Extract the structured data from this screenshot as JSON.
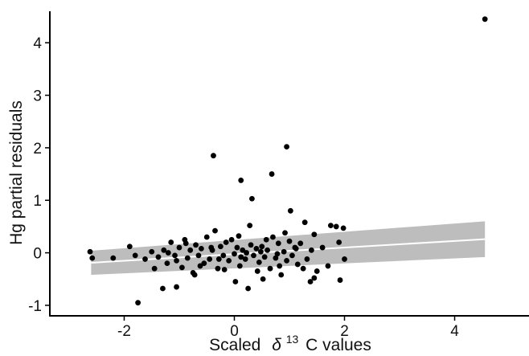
{
  "chart_data": {
    "type": "scatter",
    "xlabel_prefix": "Scaled",
    "xlabel_symbol": "δ",
    "xlabel_superscript": "13",
    "xlabel_suffix": "C values",
    "ylabel": "Hg partial residuals",
    "xlim": [
      -3.35,
      5.35
    ],
    "ylim": [
      -1.2,
      4.6
    ],
    "xticks": [
      -2,
      0,
      2,
      4
    ],
    "yticks": [
      -1,
      0,
      1,
      2,
      3,
      4
    ],
    "xtick_labels": [
      "-2",
      "0",
      "2",
      "4"
    ],
    "ytick_labels": [
      "-1",
      "0",
      "1",
      "2",
      "3",
      "4"
    ],
    "grid": false,
    "colors": {
      "points": "#000000",
      "fit_line": "#ffffff",
      "confidence_band": "#bdbdbd"
    },
    "fit_line": {
      "x": [
        -2.6,
        4.55
      ],
      "y": [
        -0.19,
        0.26
      ]
    },
    "confidence_band": {
      "x": [
        -2.6,
        4.55
      ],
      "lower": [
        -0.42,
        -0.08
      ],
      "upper": [
        0.04,
        0.6
      ]
    },
    "points": [
      {
        "x": 4.55,
        "y": 4.45
      },
      {
        "x": -0.38,
        "y": 1.85
      },
      {
        "x": 0.95,
        "y": 2.02
      },
      {
        "x": 0.12,
        "y": 1.38
      },
      {
        "x": 0.68,
        "y": 1.5
      },
      {
        "x": 0.32,
        "y": 1.03
      },
      {
        "x": 1.02,
        "y": 0.8
      },
      {
        "x": 0.28,
        "y": 0.52
      },
      {
        "x": 1.28,
        "y": 0.58
      },
      {
        "x": 1.75,
        "y": 0.52
      },
      {
        "x": 1.85,
        "y": 0.5
      },
      {
        "x": 1.98,
        "y": 0.47
      },
      {
        "x": -1.75,
        "y": -0.95
      },
      {
        "x": -1.05,
        "y": -0.65
      },
      {
        "x": -1.3,
        "y": -0.68
      },
      {
        "x": 0.25,
        "y": -0.68
      },
      {
        "x": 0.52,
        "y": -0.5
      },
      {
        "x": 1.45,
        "y": -0.48
      },
      {
        "x": 1.38,
        "y": -0.55
      },
      {
        "x": 1.92,
        "y": -0.52
      },
      {
        "x": -2.62,
        "y": 0.02
      },
      {
        "x": -2.58,
        "y": -0.1
      },
      {
        "x": -2.2,
        "y": -0.1
      },
      {
        "x": -1.9,
        "y": 0.12
      },
      {
        "x": -1.8,
        "y": -0.05
      },
      {
        "x": -1.62,
        "y": -0.12
      },
      {
        "x": -1.5,
        "y": 0.02
      },
      {
        "x": -1.38,
        "y": -0.08
      },
      {
        "x": -1.28,
        "y": 0.05
      },
      {
        "x": -1.22,
        "y": -0.2
      },
      {
        "x": -1.15,
        "y": 0.2
      },
      {
        "x": -1.08,
        "y": -0.05
      },
      {
        "x": -1.0,
        "y": 0.1
      },
      {
        "x": -0.95,
        "y": -0.28
      },
      {
        "x": -0.9,
        "y": 0.25
      },
      {
        "x": -0.85,
        "y": -0.1
      },
      {
        "x": -0.8,
        "y": 0.05
      },
      {
        "x": -0.75,
        "y": -0.38
      },
      {
        "x": -0.7,
        "y": 0.15
      },
      {
        "x": -0.65,
        "y": -0.05
      },
      {
        "x": -0.6,
        "y": 0.08
      },
      {
        "x": -0.55,
        "y": -0.2
      },
      {
        "x": -0.5,
        "y": 0.3
      },
      {
        "x": -0.45,
        "y": -0.12
      },
      {
        "x": -0.4,
        "y": 0.05
      },
      {
        "x": -0.35,
        "y": 0.42
      },
      {
        "x": -0.3,
        "y": -0.3
      },
      {
        "x": -0.25,
        "y": 0.12
      },
      {
        "x": -0.2,
        "y": -0.05
      },
      {
        "x": -0.15,
        "y": 0.2
      },
      {
        "x": -0.1,
        "y": -0.15
      },
      {
        "x": -0.05,
        "y": 0.25
      },
      {
        "x": 0.0,
        "y": -0.02
      },
      {
        "x": 0.02,
        "y": -0.55
      },
      {
        "x": 0.05,
        "y": 0.1
      },
      {
        "x": 0.1,
        "y": -0.25
      },
      {
        "x": 0.15,
        "y": 0.05
      },
      {
        "x": 0.2,
        "y": -0.12
      },
      {
        "x": 0.3,
        "y": 0.15
      },
      {
        "x": 0.35,
        "y": -0.05
      },
      {
        "x": 0.4,
        "y": 0.08
      },
      {
        "x": 0.45,
        "y": -0.18
      },
      {
        "x": 0.5,
        "y": 0.12
      },
      {
        "x": 0.55,
        "y": -0.08
      },
      {
        "x": 0.6,
        "y": 0.05
      },
      {
        "x": 0.65,
        "y": -0.3
      },
      {
        "x": 0.7,
        "y": 0.3
      },
      {
        "x": 0.75,
        "y": -0.1
      },
      {
        "x": 0.8,
        "y": 0.18
      },
      {
        "x": 0.85,
        "y": -0.42
      },
      {
        "x": 0.9,
        "y": 0.02
      },
      {
        "x": 0.95,
        "y": -0.15
      },
      {
        "x": 1.0,
        "y": 0.22
      },
      {
        "x": 1.05,
        "y": -0.05
      },
      {
        "x": 1.1,
        "y": 0.1
      },
      {
        "x": 1.15,
        "y": -0.22
      },
      {
        "x": 1.2,
        "y": 0.18
      },
      {
        "x": 1.25,
        "y": -0.3
      },
      {
        "x": 1.4,
        "y": 0.05
      },
      {
        "x": 1.5,
        "y": -0.35
      },
      {
        "x": 1.45,
        "y": 0.35
      },
      {
        "x": 1.6,
        "y": 0.1
      },
      {
        "x": 1.7,
        "y": -0.25
      },
      {
        "x": 1.9,
        "y": 0.2
      },
      {
        "x": 2.0,
        "y": -0.12
      },
      {
        "x": -1.2,
        "y": 0.0
      },
      {
        "x": -0.88,
        "y": 0.18
      },
      {
        "x": -0.62,
        "y": -0.25
      },
      {
        "x": -0.42,
        "y": 0.1
      },
      {
        "x": -0.18,
        "y": -0.32
      },
      {
        "x": 0.08,
        "y": 0.32
      },
      {
        "x": 0.22,
        "y": 0.0
      },
      {
        "x": 0.42,
        "y": -0.35
      },
      {
        "x": 0.58,
        "y": 0.25
      },
      {
        "x": 0.78,
        "y": -0.02
      },
      {
        "x": 0.92,
        "y": 0.38
      },
      {
        "x": 1.12,
        "y": 0.08
      },
      {
        "x": -1.45,
        "y": -0.3
      },
      {
        "x": -1.05,
        "y": -0.15
      },
      {
        "x": -0.72,
        "y": -0.42
      },
      {
        "x": -0.28,
        "y": -0.12
      },
      {
        "x": 0.12,
        "y": -0.08
      },
      {
        "x": 0.48,
        "y": 0.02
      },
      {
        "x": 0.82,
        "y": -0.25
      },
      {
        "x": 1.32,
        "y": -0.12
      }
    ]
  }
}
